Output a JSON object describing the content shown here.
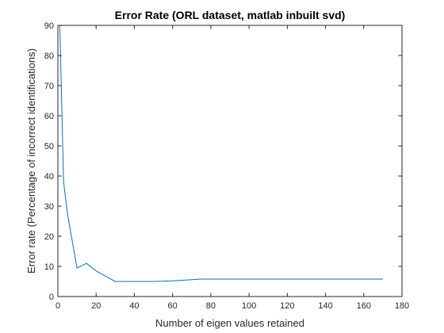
{
  "chart_data": {
    "type": "line",
    "title": "Error Rate (ORL dataset, matlab inbuilt svd)",
    "xlabel": "Number of eigen values retained",
    "ylabel": "Error rate (Percentage of incorrect identifications)",
    "xlim": [
      0,
      180
    ],
    "ylim": [
      0,
      90
    ],
    "xticks": [
      0,
      20,
      40,
      60,
      80,
      100,
      120,
      140,
      160,
      180
    ],
    "yticks": [
      0,
      10,
      20,
      30,
      40,
      50,
      60,
      70,
      80,
      90
    ],
    "grid": false,
    "box": true,
    "series": [
      {
        "color": "#0072bd",
        "x": [
          1,
          3,
          5,
          10,
          15,
          20,
          30,
          40,
          50,
          60,
          75,
          100,
          120,
          140,
          170
        ],
        "y": [
          90,
          38,
          27.5,
          9.5,
          11,
          8.5,
          5,
          5,
          5,
          5.2,
          5.8,
          5.8,
          5.8,
          5.8,
          5.8
        ]
      }
    ]
  }
}
